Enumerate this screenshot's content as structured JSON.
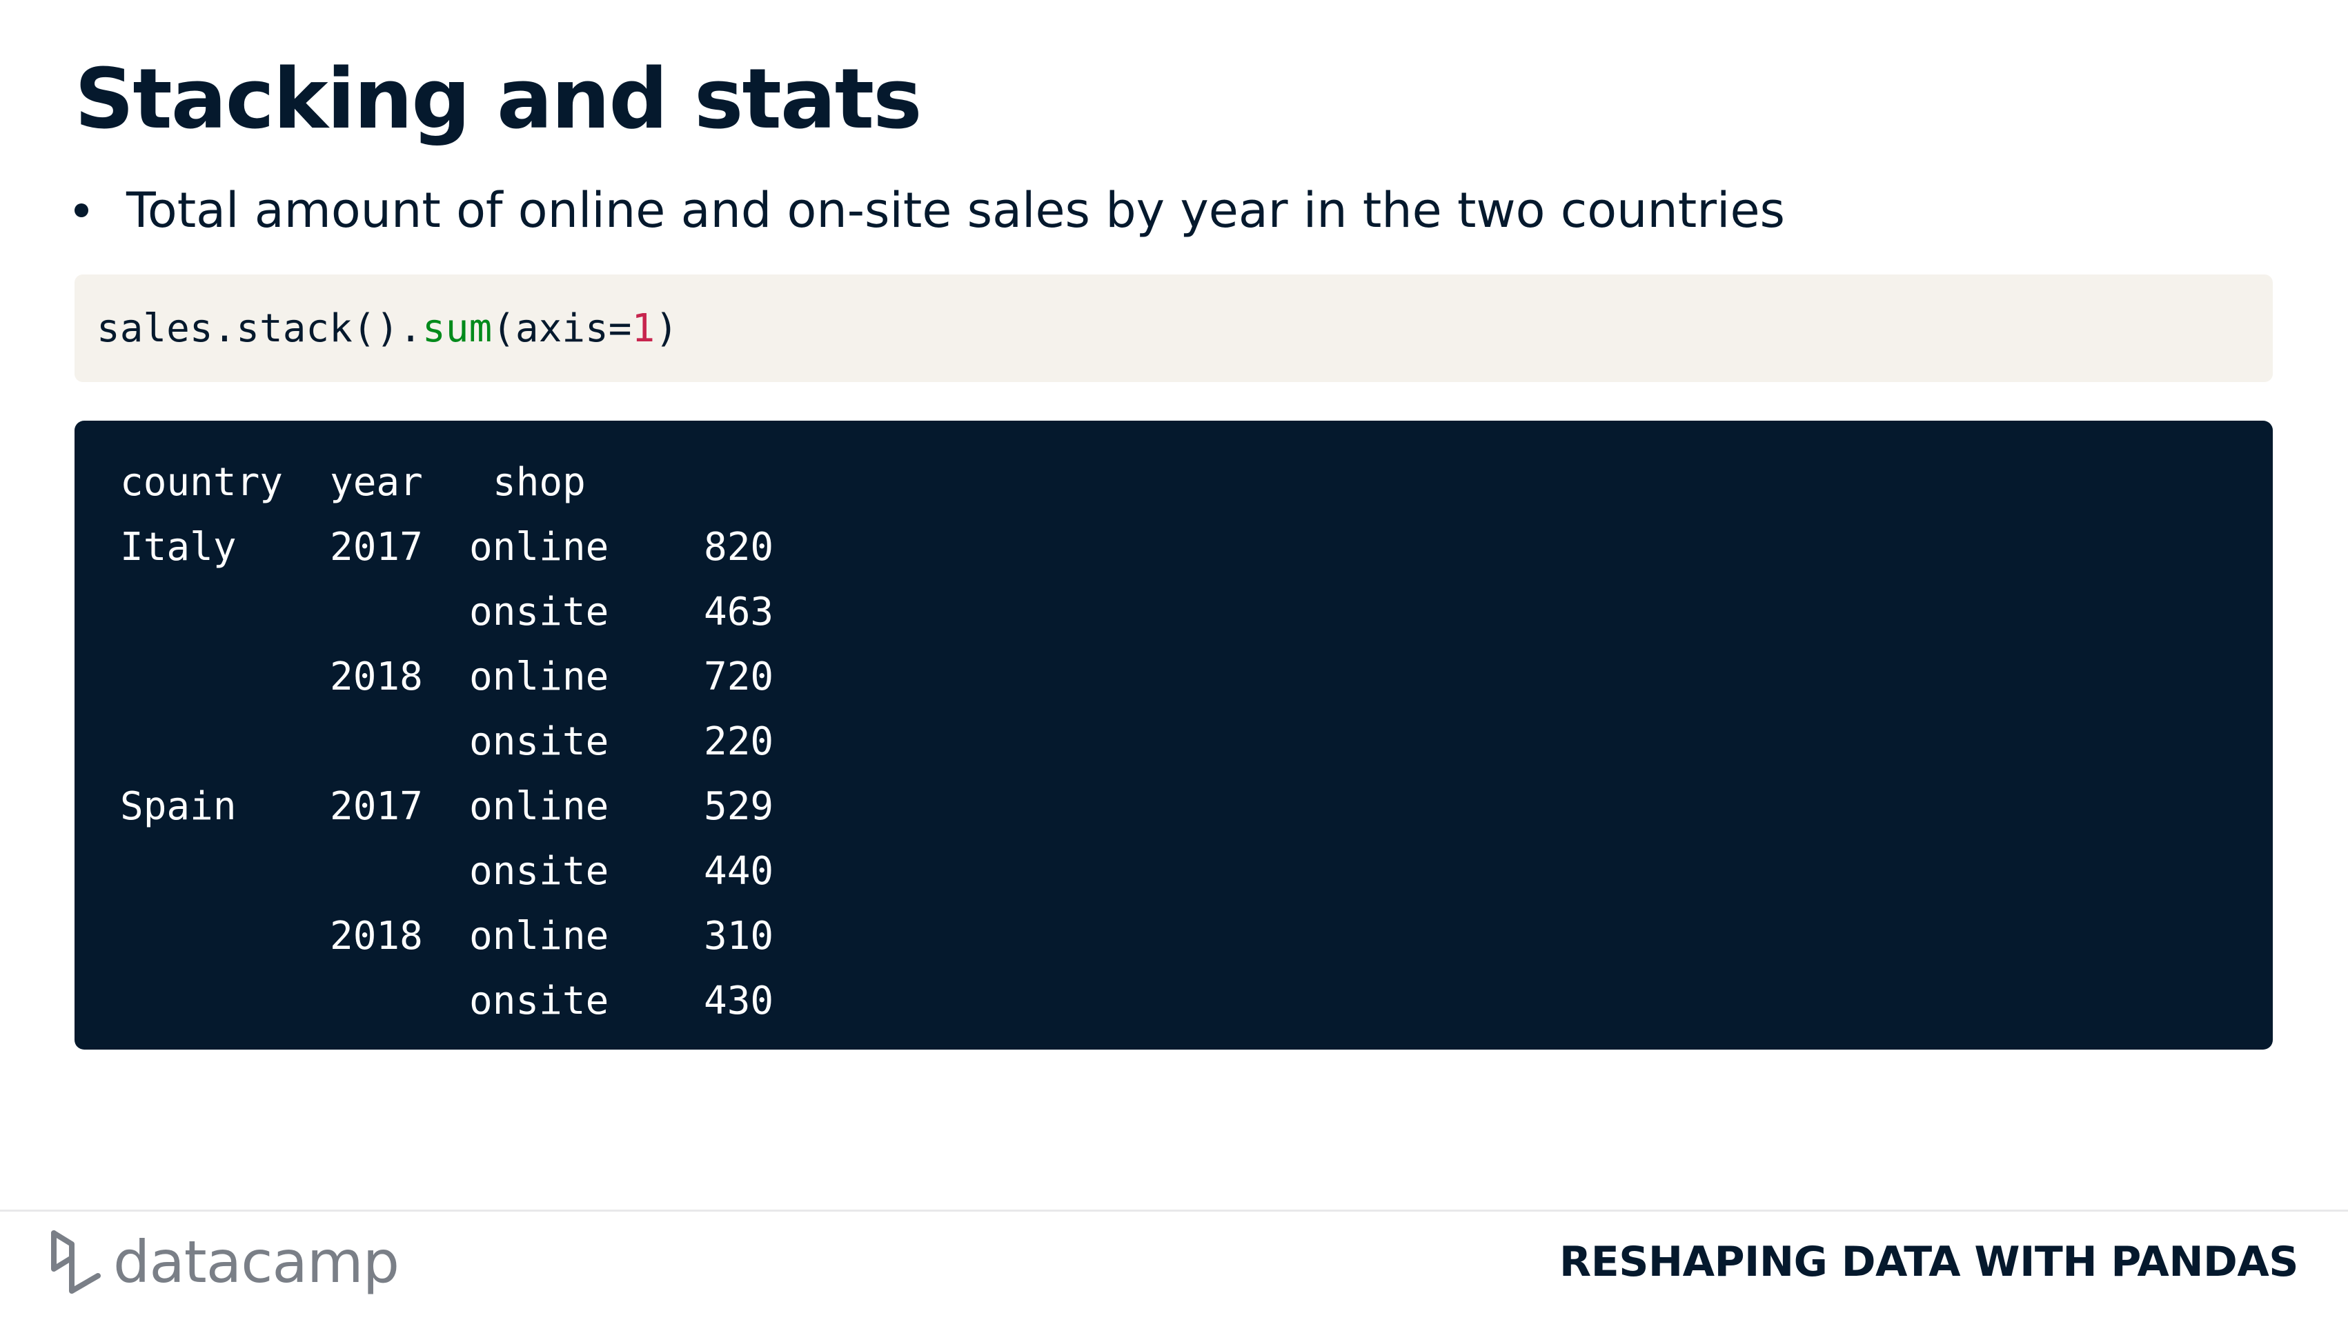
{
  "slide": {
    "title": "Stacking and stats",
    "bullet": "Total amount of online and on-site sales by year in the two countries"
  },
  "code": {
    "prefix": "sales.stack().",
    "fn": "sum",
    "arg_open": "(axis=",
    "arg_value": "1",
    "arg_close": ")"
  },
  "output": {
    "headers": {
      "country": "country",
      "year": "year",
      "shop": "shop"
    },
    "rows": [
      {
        "country": "Italy",
        "year": "2017",
        "shop": "online",
        "value": "820"
      },
      {
        "country": "",
        "year": "",
        "shop": "onsite",
        "value": "463"
      },
      {
        "country": "",
        "year": "2018",
        "shop": "online",
        "value": "720"
      },
      {
        "country": "",
        "year": "",
        "shop": "onsite",
        "value": "220"
      },
      {
        "country": "Spain",
        "year": "2017",
        "shop": "online",
        "value": "529"
      },
      {
        "country": "",
        "year": "",
        "shop": "onsite",
        "value": "440"
      },
      {
        "country": "",
        "year": "2018",
        "shop": "online",
        "value": "310"
      },
      {
        "country": "",
        "year": "",
        "shop": "onsite",
        "value": "430"
      }
    ]
  },
  "footer": {
    "logo_text": "datacamp",
    "course": "RESHAPING DATA WITH PANDAS"
  },
  "colors": {
    "navy": "#05192d",
    "code_bg": "#f5f2ec",
    "fn_green": "#018a1b",
    "number_pink": "#c7254e",
    "logo_gray": "#7a7f87"
  }
}
